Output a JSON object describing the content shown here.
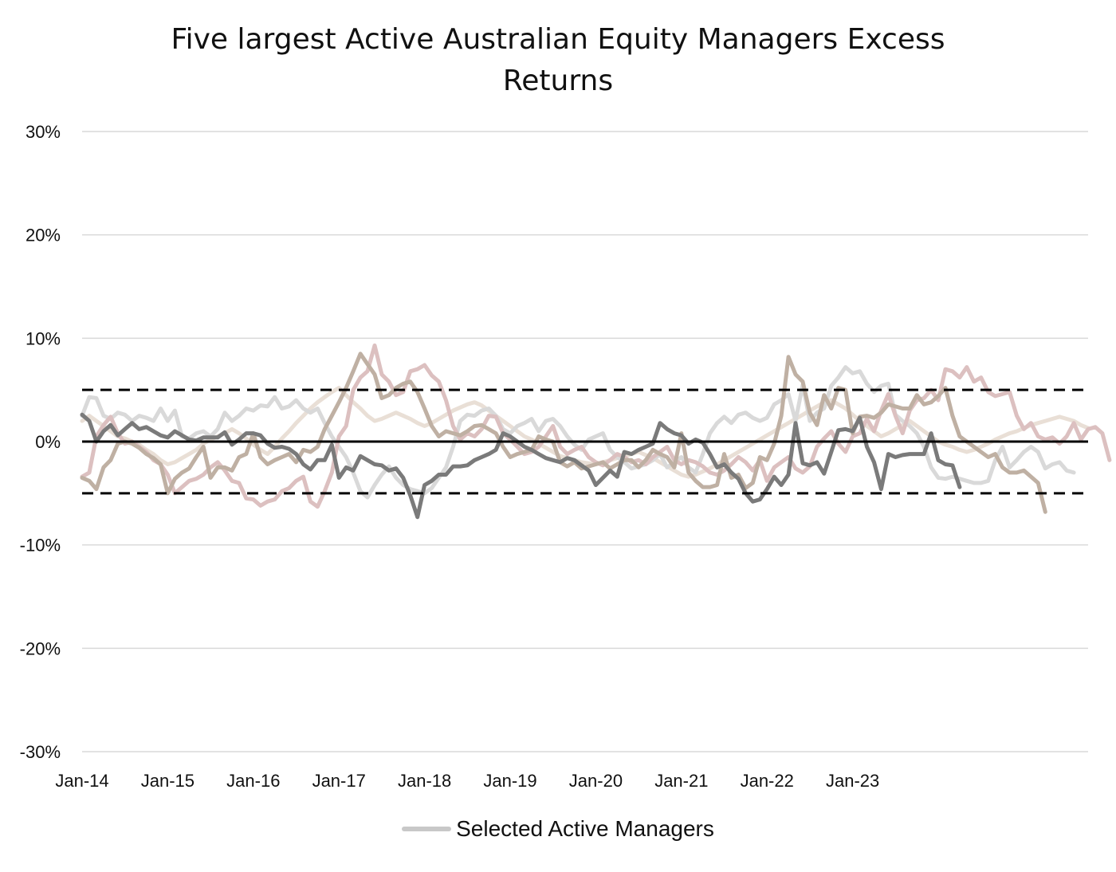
{
  "chart_data": {
    "type": "line",
    "title": "Five largest Active Australian Equity Managers Excess Returns",
    "xlabel": "",
    "ylabel": "",
    "ylim": [
      -30,
      30
    ],
    "yticks": [
      "30%",
      "20%",
      "10%",
      "0%",
      "-10%",
      "-20%",
      "-30%"
    ],
    "xticks": [
      "Jan-14",
      "Jan-15",
      "Jan-16",
      "Jan-17",
      "Jan-18",
      "Jan-19",
      "Jan-20",
      "Jan-21",
      "Jan-22",
      "Jan-23"
    ],
    "x_start": "Jan-14",
    "x_end": "Dec-23",
    "grid": true,
    "legend": {
      "position": "bottom",
      "label": "Selected Active Managers"
    },
    "reference_lines": [
      {
        "value": 5,
        "style": "dashed"
      },
      {
        "value": 0,
        "style": "solid"
      },
      {
        "value": -5,
        "style": "dashed"
      }
    ],
    "series": [
      {
        "color": "#e9dfd6",
        "values": [
          2.0,
          2.5,
          2.0,
          1.5,
          1.0,
          0.5,
          0.3,
          0.0,
          -0.3,
          -0.8,
          -1.2,
          -1.8,
          -2.2,
          -2.0,
          -1.6,
          -1.2,
          -0.8,
          -0.2,
          0.2,
          0.5,
          0.8,
          1.2,
          0.8,
          0.3,
          -0.3,
          -0.8,
          -1.2,
          -0.5,
          0.3,
          1.0,
          1.8,
          2.5,
          3.2,
          3.8,
          4.3,
          4.8,
          5.2,
          4.5,
          3.8,
          3.2,
          2.5,
          2.0,
          2.2,
          2.5,
          2.8,
          2.5,
          2.2,
          1.8,
          1.5,
          1.8,
          2.2,
          2.6,
          3.0,
          3.3,
          3.6,
          3.8,
          3.5,
          3.0,
          2.5,
          2.0,
          1.5,
          1.0,
          0.5,
          0.2,
          -0.2,
          -0.6,
          -1.0,
          -1.4,
          -1.6,
          -1.8,
          -2.0,
          -2.1,
          -2.2,
          -2.0,
          -1.8,
          -1.6,
          -1.4,
          -1.2,
          -1.0,
          -1.3,
          -1.6,
          -2.0,
          -2.4,
          -2.8,
          -3.2,
          -3.4,
          -3.2,
          -2.9,
          -2.6,
          -2.2,
          -1.8,
          -1.4,
          -1.0,
          -0.6,
          -0.2,
          0.2,
          0.6,
          1.0,
          1.4,
          1.8,
          2.2,
          2.6,
          3.0,
          3.4,
          3.8,
          4.0,
          3.6,
          3.2,
          2.6,
          2.0,
          1.5,
          1.0,
          0.5,
          0.8,
          1.2,
          1.6,
          2.0,
          1.5,
          1.0,
          0.5,
          0.0,
          -0.3,
          -0.5,
          -0.8,
          -1.0,
          -0.8,
          -0.5,
          -0.2,
          0.2,
          0.5,
          0.8,
          1.0,
          1.3,
          1.6,
          1.8,
          2.0,
          2.2,
          2.4,
          2.2,
          2.0,
          1.6,
          1.3
        ]
      },
      {
        "color": "#d9d9d9",
        "values": [
          2.5,
          4.3,
          4.2,
          2.5,
          2.2,
          2.8,
          2.6,
          2.0,
          2.5,
          2.3,
          2.0,
          3.2,
          2.0,
          3.0,
          0.5,
          0.3,
          0.8,
          1.0,
          0.5,
          1.2,
          2.8,
          2.0,
          2.5,
          3.2,
          3.0,
          3.5,
          3.4,
          4.3,
          3.2,
          3.4,
          4.0,
          3.2,
          2.8,
          3.2,
          1.8,
          0.5,
          -0.5,
          -1.5,
          -3.0,
          -4.8,
          -5.4,
          -4.2,
          -3.2,
          -2.4,
          -3.5,
          -4.2,
          -4.6,
          -4.8,
          -5.0,
          -4.5,
          -3.5,
          -2.5,
          -0.5,
          2.0,
          2.6,
          2.5,
          3.0,
          3.2,
          2.5,
          1.2,
          0.8,
          1.5,
          1.8,
          2.2,
          1.0,
          2.0,
          2.2,
          1.5,
          0.5,
          -0.3,
          -0.8,
          0.2,
          0.5,
          0.8,
          -0.8,
          -1.5,
          -2.0,
          -2.6,
          -2.4,
          -2.2,
          -1.8,
          -1.2,
          -2.5,
          -2.0,
          -1.5,
          -2.5,
          -3.0,
          -1.2,
          0.8,
          1.8,
          2.4,
          1.8,
          2.6,
          2.8,
          2.3,
          2.0,
          2.3,
          3.6,
          4.0,
          4.6,
          2.0,
          5.5,
          2.0,
          2.8,
          3.2,
          5.4,
          6.2,
          7.2,
          6.6,
          6.8,
          5.6,
          4.8,
          5.4,
          5.6,
          2.6,
          2.0,
          1.5,
          0.8,
          -0.5,
          -2.5,
          -3.5,
          -3.6,
          -3.4,
          -3.6,
          -3.8,
          -4.0,
          -4.0,
          -3.8,
          -1.8,
          -0.5,
          -2.5,
          -1.8,
          -1.0,
          -0.5,
          -1.0,
          -2.6,
          -2.2,
          -2.0,
          -2.8,
          -3.0
        ]
      },
      {
        "color": "#dcc0c0",
        "values": [
          -3.4,
          -3.0,
          0.5,
          1.6,
          2.4,
          0.8,
          -0.2,
          0.0,
          -0.5,
          -1.0,
          -1.8,
          -2.2,
          -3.2,
          -5.0,
          -4.4,
          -3.8,
          -3.6,
          -3.2,
          -2.5,
          -2.0,
          -2.8,
          -3.8,
          -4.0,
          -5.5,
          -5.6,
          -6.2,
          -5.8,
          -5.6,
          -4.8,
          -4.5,
          -3.8,
          -3.4,
          -5.8,
          -6.3,
          -4.8,
          -3.0,
          0.5,
          1.5,
          5.0,
          6.2,
          6.8,
          9.3,
          6.5,
          5.8,
          4.5,
          4.8,
          6.8,
          7.0,
          7.4,
          6.4,
          5.8,
          4.0,
          1.5,
          0.2,
          0.8,
          0.5,
          1.2,
          2.5,
          2.4,
          0.8,
          0.2,
          -0.5,
          -1.2,
          -1.0,
          -0.5,
          0.5,
          1.5,
          -0.5,
          -1.2,
          -0.8,
          -0.5,
          -1.5,
          -2.0,
          -2.3,
          -1.8,
          -1.2,
          -1.5,
          -2.0,
          -1.8,
          -2.2,
          -1.5,
          -1.0,
          -0.5,
          -1.8,
          -2.2,
          -1.8,
          -2.0,
          -2.4,
          -3.0,
          -3.2,
          -2.8,
          -2.2,
          -1.5,
          -2.0,
          -2.8,
          -1.8,
          -3.8,
          -2.5,
          -2.0,
          -1.5,
          -2.6,
          -3.0,
          -2.4,
          -0.5,
          0.3,
          1.0,
          -0.2,
          -1.0,
          0.5,
          0.8,
          2.2,
          1.0,
          3.0,
          4.6,
          2.5,
          0.8,
          3.0,
          4.0,
          4.2,
          5.0,
          4.0,
          7.0,
          6.8,
          6.2,
          7.2,
          5.8,
          6.2,
          4.8,
          4.4,
          4.6,
          4.8,
          2.5,
          1.2,
          1.8,
          0.5,
          0.2,
          0.4,
          -0.2,
          0.5,
          1.8,
          0.2,
          1.2,
          1.4,
          0.8,
          -1.8
        ]
      },
      {
        "color": "#bfb0a3",
        "values": [
          -3.5,
          -3.8,
          -4.6,
          -2.5,
          -1.8,
          -0.2,
          0.0,
          -0.2,
          -0.6,
          -1.2,
          -1.6,
          -2.2,
          -5.0,
          -3.6,
          -3.0,
          -2.6,
          -1.5,
          -0.5,
          -3.5,
          -2.5,
          -2.5,
          -2.8,
          -1.5,
          -1.2,
          0.8,
          -1.5,
          -2.2,
          -1.8,
          -1.5,
          -1.2,
          -2.0,
          -0.8,
          -1.0,
          -0.5,
          1.2,
          2.5,
          3.8,
          5.2,
          6.8,
          8.5,
          7.5,
          6.5,
          4.2,
          4.5,
          5.2,
          5.6,
          5.8,
          4.8,
          3.2,
          1.5,
          0.5,
          1.0,
          0.8,
          0.6,
          1.0,
          1.5,
          1.6,
          1.2,
          0.8,
          -0.5,
          -1.5,
          -1.2,
          -1.0,
          -0.8,
          0.5,
          0.2,
          0.0,
          -2.0,
          -2.4,
          -2.0,
          -2.6,
          -2.4,
          -2.2,
          -2.0,
          -2.6,
          -2.2,
          -1.8,
          -1.8,
          -2.5,
          -1.8,
          -0.8,
          -1.2,
          -1.5,
          -2.5,
          0.8,
          -3.0,
          -3.8,
          -4.4,
          -4.4,
          -4.2,
          -1.2,
          -3.5,
          -3.2,
          -4.5,
          -4.0,
          -1.5,
          -1.8,
          -0.2,
          2.5,
          8.2,
          6.5,
          5.8,
          2.8,
          1.6,
          4.5,
          3.2,
          5.2,
          5.0,
          0.8,
          2.4,
          2.5,
          2.3,
          2.8,
          3.6,
          3.4,
          3.2,
          3.2,
          4.5,
          3.6,
          3.8,
          4.4,
          5.2,
          2.5,
          0.5,
          0.0,
          -0.5,
          -1.0,
          -1.5,
          -1.2,
          -2.5,
          -3.0,
          -3.0,
          -2.8,
          -3.4,
          -4.0,
          -6.8
        ]
      },
      {
        "color": "#7a7a7a",
        "values": [
          2.6,
          2.0,
          0.0,
          1.0,
          1.6,
          0.6,
          1.2,
          1.8,
          1.2,
          1.4,
          1.0,
          0.6,
          0.4,
          1.0,
          0.6,
          0.2,
          0.1,
          0.4,
          0.4,
          0.4,
          0.9,
          -0.3,
          0.2,
          0.8,
          0.8,
          0.6,
          -0.2,
          -0.6,
          -0.5,
          -0.7,
          -1.2,
          -2.2,
          -2.7,
          -1.8,
          -1.8,
          -0.3,
          -3.5,
          -2.5,
          -2.8,
          -1.4,
          -1.8,
          -2.2,
          -2.3,
          -2.8,
          -2.6,
          -3.5,
          -5.2,
          -7.3,
          -4.2,
          -3.8,
          -3.2,
          -3.2,
          -2.4,
          -2.4,
          -2.3,
          -1.8,
          -1.5,
          -1.2,
          -0.8,
          0.8,
          0.5,
          0.0,
          -0.5,
          -0.8,
          -1.2,
          -1.6,
          -1.8,
          -2.0,
          -1.6,
          -1.8,
          -2.3,
          -2.8,
          -4.2,
          -3.5,
          -2.8,
          -3.4,
          -1.0,
          -1.2,
          -0.8,
          -0.5,
          -0.2,
          1.8,
          1.2,
          0.8,
          0.6,
          -0.2,
          0.2,
          -0.1,
          -1.2,
          -2.5,
          -2.2,
          -3.0,
          -3.6,
          -5.0,
          -5.8,
          -5.6,
          -4.6,
          -3.4,
          -4.2,
          -3.2,
          1.8,
          -2.1,
          -2.3,
          -2.0,
          -3.1,
          -1.0,
          1.1,
          1.2,
          1.0,
          2.3,
          -0.5,
          -2.0,
          -4.6,
          -1.2,
          -1.5,
          -1.3,
          -1.2,
          -1.2,
          -1.2,
          0.8,
          -1.8,
          -2.2,
          -2.3,
          -4.4
        ]
      }
    ]
  }
}
